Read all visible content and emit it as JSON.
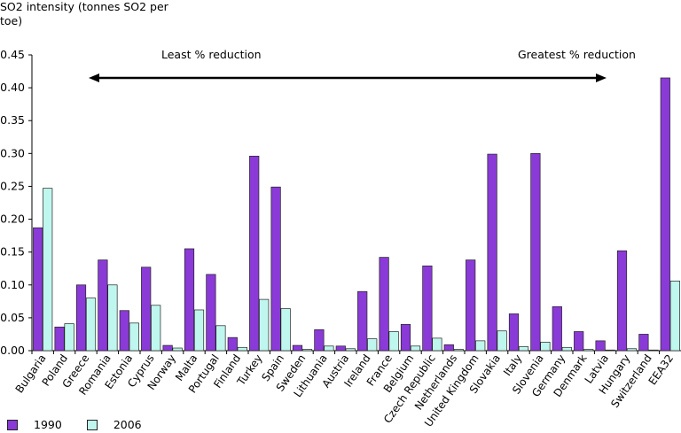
{
  "chart_data": {
    "type": "bar",
    "ylabel": "SO2 intensity (tonnes SO2 per toe)",
    "ylim": [
      0,
      0.45
    ],
    "yticks": [
      "0.00",
      "0.05",
      "0.10",
      "0.15",
      "0.20",
      "0.25",
      "0.30",
      "0.35",
      "0.40",
      "0.45"
    ],
    "categories": [
      "Bulgaria",
      "Poland",
      "Greece",
      "Romania",
      "Estonia",
      "Cyprus",
      "Norway",
      "Malta",
      "Portugal",
      "Finland",
      "Turkey",
      "Spain",
      "Sweden",
      "Lithuania",
      "Austria",
      "Ireland",
      "France",
      "Belgium",
      "Czech Republic",
      "Netherlands",
      "United Kingdom",
      "Slovakia",
      "Italy",
      "Slovenia",
      "Germany",
      "Denmark",
      "Latvia",
      "Hungary",
      "Switzerland",
      "EEA32"
    ],
    "series": [
      {
        "name": "1990",
        "color": "#8a3ad6",
        "values": [
          0.187,
          0.036,
          0.1,
          0.138,
          0.061,
          0.127,
          0.008,
          0.155,
          0.116,
          0.02,
          0.296,
          0.249,
          0.008,
          0.032,
          0.007,
          0.09,
          0.142,
          0.04,
          0.129,
          0.009,
          0.138,
          0.299,
          0.056,
          0.3,
          0.067,
          0.029,
          0.015,
          0.152,
          0.025,
          0.415
        ]
      },
      {
        "name": "2006",
        "color": "#bff7ee",
        "values": [
          0.247,
          0.041,
          0.08,
          0.1,
          0.042,
          0.069,
          0.004,
          0.062,
          0.038,
          0.005,
          0.078,
          0.064,
          0.002,
          0.007,
          0.003,
          0.018,
          0.029,
          0.007,
          0.019,
          0.002,
          0.015,
          0.03,
          0.006,
          0.013,
          0.005,
          0.002,
          0.001,
          0.003,
          0.001,
          0.106
        ]
      }
    ],
    "annotations": {
      "left": "Least % reduction",
      "right": "Greatest % reduction"
    },
    "grid": false,
    "legend_position": "bottom-left"
  }
}
